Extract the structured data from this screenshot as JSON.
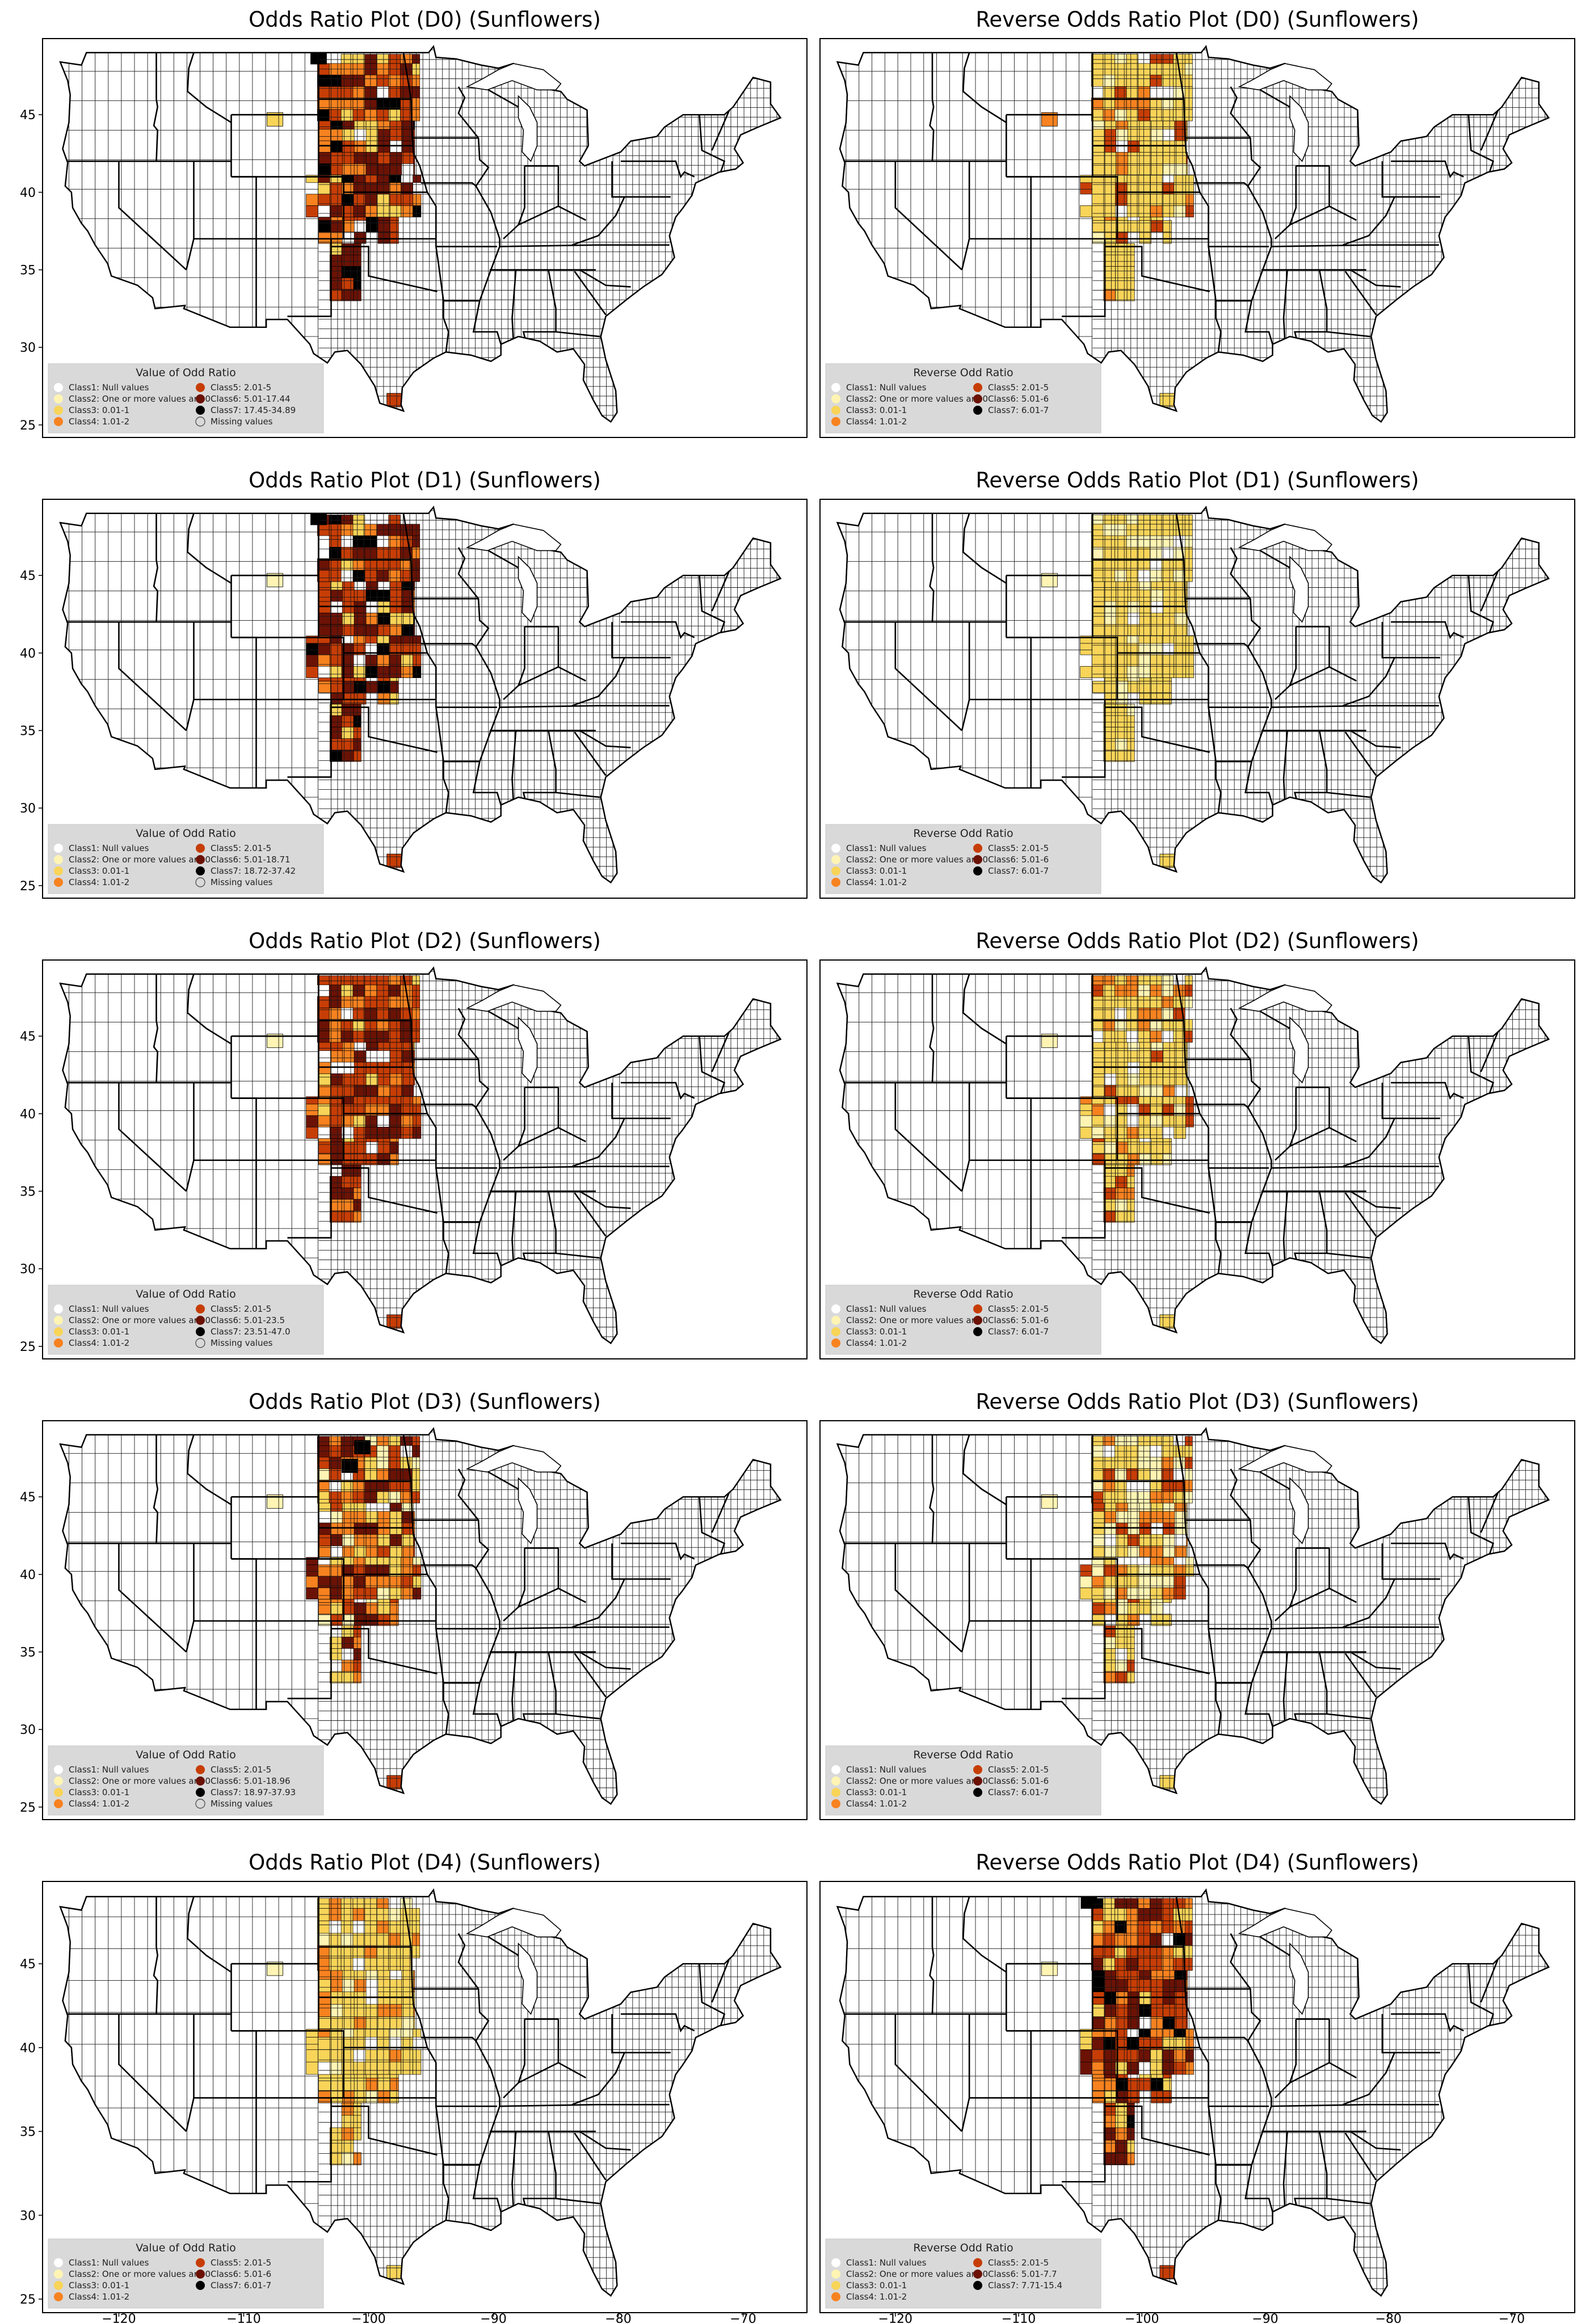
{
  "colors": {
    "class1": "#ffffff",
    "class2": "#fff4b3",
    "class3": "#f8d458",
    "class4": "#f7821f",
    "class5": "#c73d06",
    "class6": "#6b1205",
    "class7": "#000000",
    "missing": "#d9d9d9",
    "legend_background": "#d9d9d9"
  },
  "axes": {
    "lon_range": [
      -125.5,
      -65.5
    ],
    "lat_range": [
      24.5,
      49.6
    ],
    "lon_ticks": [
      -120,
      -110,
      -100,
      -90,
      -80,
      -70
    ],
    "lat_ticks": [
      25,
      30,
      35,
      40,
      45
    ],
    "lon_tick_labels": [
      "−120",
      "−110",
      "−100",
      "−90",
      "−80",
      "−70"
    ],
    "lat_tick_labels": [
      "25",
      "30",
      "35",
      "40",
      "45"
    ]
  },
  "panels": [
    {
      "title": "Odds Ratio Plot (D0) (Sunflowers)",
      "legend": {
        "title": "Value of Odd Ratio",
        "entries": [
          {
            "label": "Class1: Null values",
            "color": "class1"
          },
          {
            "label": "Class2: One or more values are 0",
            "color": "class2"
          },
          {
            "label": "Class3: 0.01-1",
            "color": "class3"
          },
          {
            "label": "Class4: 1.01-2",
            "color": "class4"
          },
          {
            "label": "Class5: 2.01-5",
            "color": "class5"
          },
          {
            "label": "Class6: 5.01-17.44",
            "color": "class6"
          },
          {
            "label": "Class7: 17.45-34.89",
            "color": "class7"
          },
          {
            "label": "Missing values",
            "color": "missing"
          }
        ]
      },
      "palette": [
        "class5",
        "class6",
        "class5",
        "class6",
        "class4",
        "class7",
        "class5",
        "class3",
        "class6",
        "class4"
      ],
      "accents": [
        {
          "lon": -104.0,
          "lat": 48.7,
          "color": "class7"
        },
        {
          "lon": -107.5,
          "lat": 44.7,
          "color": "class3"
        },
        {
          "lon": -97.9,
          "lat": 26.6,
          "color": "class5"
        }
      ]
    },
    {
      "title": "Reverse Odds Ratio Plot (D0) (Sunflowers)",
      "legend": {
        "title": "Reverse Odd Ratio",
        "entries": [
          {
            "label": "Class1: Null values",
            "color": "class1"
          },
          {
            "label": "Class2: One or more values are 0",
            "color": "class2"
          },
          {
            "label": "Class3: 0.01-1",
            "color": "class3"
          },
          {
            "label": "Class4: 1.01-2",
            "color": "class4"
          },
          {
            "label": "Class5: 2.01-5",
            "color": "class5"
          },
          {
            "label": "Class6: 5.01-6",
            "color": "class6"
          },
          {
            "label": "Class7: 6.01-7",
            "color": "class7"
          }
        ]
      },
      "palette": [
        "class3",
        "class3",
        "class3",
        "class2",
        "class3",
        "class3",
        "class4",
        "class3",
        "class3",
        "class5"
      ],
      "accents": [
        {
          "lon": -107.5,
          "lat": 44.7,
          "color": "class4"
        },
        {
          "lon": -97.9,
          "lat": 26.6,
          "color": "class3"
        }
      ]
    },
    {
      "title": "Odds Ratio Plot (D1) (Sunflowers)",
      "legend": {
        "title": "Value of Odd Ratio",
        "entries": [
          {
            "label": "Class1: Null values",
            "color": "class1"
          },
          {
            "label": "Class2: One or more values are 0",
            "color": "class2"
          },
          {
            "label": "Class3: 0.01-1",
            "color": "class3"
          },
          {
            "label": "Class4: 1.01-2",
            "color": "class4"
          },
          {
            "label": "Class5: 2.01-5",
            "color": "class5"
          },
          {
            "label": "Class6: 5.01-18.71",
            "color": "class6"
          },
          {
            "label": "Class7: 18.72-37.42",
            "color": "class7"
          },
          {
            "label": "Missing values",
            "color": "missing"
          }
        ]
      },
      "palette": [
        "class5",
        "class6",
        "class5",
        "class6",
        "class4",
        "class5",
        "class7",
        "class3",
        "class6",
        "class5"
      ],
      "accents": [
        {
          "lon": -104.0,
          "lat": 48.7,
          "color": "class7"
        },
        {
          "lon": -107.5,
          "lat": 44.7,
          "color": "class2"
        },
        {
          "lon": -97.9,
          "lat": 26.6,
          "color": "class5"
        }
      ]
    },
    {
      "title": "Reverse Odds Ratio Plot (D1) (Sunflowers)",
      "legend": {
        "title": "Reverse Odd Ratio",
        "entries": [
          {
            "label": "Class1: Null values",
            "color": "class1"
          },
          {
            "label": "Class2: One or more values are 0",
            "color": "class2"
          },
          {
            "label": "Class3: 0.01-1",
            "color": "class3"
          },
          {
            "label": "Class4: 1.01-2",
            "color": "class4"
          },
          {
            "label": "Class5: 2.01-5",
            "color": "class5"
          },
          {
            "label": "Class6: 5.01-6",
            "color": "class6"
          },
          {
            "label": "Class7: 6.01-7",
            "color": "class7"
          }
        ]
      },
      "palette": [
        "class3",
        "class3",
        "class3",
        "class2",
        "class3",
        "class3",
        "class3",
        "class3",
        "class2",
        "class3"
      ],
      "accents": [
        {
          "lon": -107.5,
          "lat": 44.7,
          "color": "class2"
        },
        {
          "lon": -97.9,
          "lat": 26.6,
          "color": "class3"
        }
      ]
    },
    {
      "title": "Odds Ratio Plot (D2) (Sunflowers)",
      "legend": {
        "title": "Value of Odd Ratio",
        "entries": [
          {
            "label": "Class1: Null values",
            "color": "class1"
          },
          {
            "label": "Class2: One or more values are 0",
            "color": "class2"
          },
          {
            "label": "Class3: 0.01-1",
            "color": "class3"
          },
          {
            "label": "Class4: 1.01-2",
            "color": "class4"
          },
          {
            "label": "Class5: 2.01-5",
            "color": "class5"
          },
          {
            "label": "Class6: 5.01-23.5",
            "color": "class6"
          },
          {
            "label": "Class7: 23.51-47.0",
            "color": "class7"
          },
          {
            "label": "Missing values",
            "color": "missing"
          }
        ]
      },
      "palette": [
        "class6",
        "class5",
        "class6",
        "class5",
        "class4",
        "class6",
        "class5",
        "class3",
        "class5",
        "class4"
      ],
      "accents": [
        {
          "lon": -107.5,
          "lat": 44.7,
          "color": "class2"
        },
        {
          "lon": -97.9,
          "lat": 26.6,
          "color": "class5"
        }
      ]
    },
    {
      "title": "Reverse Odds Ratio Plot (D2) (Sunflowers)",
      "legend": {
        "title": "Reverse Odd Ratio",
        "entries": [
          {
            "label": "Class1: Null values",
            "color": "class1"
          },
          {
            "label": "Class2: One or more values are 0",
            "color": "class2"
          },
          {
            "label": "Class3: 0.01-1",
            "color": "class3"
          },
          {
            "label": "Class4: 1.01-2",
            "color": "class4"
          },
          {
            "label": "Class5: 2.01-5",
            "color": "class5"
          },
          {
            "label": "Class6: 5.01-6",
            "color": "class6"
          },
          {
            "label": "Class7: 6.01-7",
            "color": "class7"
          }
        ]
      },
      "palette": [
        "class3",
        "class3",
        "class2",
        "class3",
        "class3",
        "class4",
        "class3",
        "class3",
        "class5",
        "class3"
      ],
      "accents": [
        {
          "lon": -107.5,
          "lat": 44.7,
          "color": "class2"
        },
        {
          "lon": -97.9,
          "lat": 26.6,
          "color": "class3"
        }
      ]
    },
    {
      "title": "Odds Ratio Plot (D3) (Sunflowers)",
      "legend": {
        "title": "Value of Odd Ratio",
        "entries": [
          {
            "label": "Class1: Null values",
            "color": "class1"
          },
          {
            "label": "Class2: One or more values are 0",
            "color": "class2"
          },
          {
            "label": "Class3: 0.01-1",
            "color": "class3"
          },
          {
            "label": "Class4: 1.01-2",
            "color": "class4"
          },
          {
            "label": "Class5: 2.01-5",
            "color": "class5"
          },
          {
            "label": "Class6: 5.01-18.96",
            "color": "class6"
          },
          {
            "label": "Class7: 18.97-37.93",
            "color": "class7"
          },
          {
            "label": "Missing values",
            "color": "missing"
          }
        ]
      },
      "palette": [
        "class5",
        "class4",
        "class6",
        "class3",
        "class5",
        "class2",
        "class6",
        "class4",
        "class5",
        "class3"
      ],
      "accents": [
        {
          "lon": -100.5,
          "lat": 48.2,
          "color": "class7"
        },
        {
          "lon": -101.5,
          "lat": 47.0,
          "color": "class7"
        },
        {
          "lon": -107.5,
          "lat": 44.7,
          "color": "class2"
        },
        {
          "lon": -97.9,
          "lat": 26.6,
          "color": "class5"
        }
      ]
    },
    {
      "title": "Reverse Odds Ratio Plot (D3) (Sunflowers)",
      "legend": {
        "title": "Reverse Odd Ratio",
        "entries": [
          {
            "label": "Class1: Null values",
            "color": "class1"
          },
          {
            "label": "Class2: One or more values are 0",
            "color": "class2"
          },
          {
            "label": "Class3: 0.01-1",
            "color": "class3"
          },
          {
            "label": "Class4: 1.01-2",
            "color": "class4"
          },
          {
            "label": "Class5: 2.01-5",
            "color": "class5"
          },
          {
            "label": "Class6: 5.01-6",
            "color": "class6"
          },
          {
            "label": "Class7: 6.01-7",
            "color": "class7"
          }
        ]
      },
      "palette": [
        "class3",
        "class2",
        "class3",
        "class4",
        "class3",
        "class2",
        "class5",
        "class3",
        "class4",
        "class2"
      ],
      "accents": [
        {
          "lon": -107.5,
          "lat": 44.7,
          "color": "class2"
        },
        {
          "lon": -97.9,
          "lat": 26.6,
          "color": "class3"
        }
      ]
    },
    {
      "title": "Odds Ratio Plot (D4) (Sunflowers)",
      "legend": {
        "title": "Value of Odd Ratio",
        "entries": [
          {
            "label": "Class1: Null values",
            "color": "class1"
          },
          {
            "label": "Class2: One or more values are 0",
            "color": "class2"
          },
          {
            "label": "Class3: 0.01-1",
            "color": "class3"
          },
          {
            "label": "Class4: 1.01-2",
            "color": "class4"
          },
          {
            "label": "Class5: 2.01-5",
            "color": "class5"
          },
          {
            "label": "Class6: 5.01-6",
            "color": "class6"
          },
          {
            "label": "Class7: 6.01-7",
            "color": "class7"
          }
        ]
      },
      "palette": [
        "class3",
        "class3",
        "class3",
        "class2",
        "class3",
        "class4",
        "class3",
        "class3",
        "class4",
        "class3"
      ],
      "accents": [
        {
          "lon": -107.5,
          "lat": 44.7,
          "color": "class2"
        },
        {
          "lon": -97.9,
          "lat": 26.6,
          "color": "class3"
        }
      ]
    },
    {
      "title": "Reverse Odds Ratio Plot (D4) (Sunflowers)",
      "legend": {
        "title": "Reverse Odd Ratio",
        "entries": [
          {
            "label": "Class1: Null values",
            "color": "class1"
          },
          {
            "label": "Class2: One or more values are 0",
            "color": "class2"
          },
          {
            "label": "Class3: 0.01-1",
            "color": "class3"
          },
          {
            "label": "Class4: 1.01-2",
            "color": "class4"
          },
          {
            "label": "Class5: 2.01-5",
            "color": "class5"
          },
          {
            "label": "Class6: 5.01-7.7",
            "color": "class6"
          },
          {
            "label": "Class7: 7.71-15.4",
            "color": "class7"
          }
        ]
      },
      "palette": [
        "class5",
        "class6",
        "class4",
        "class5",
        "class7",
        "class4",
        "class5",
        "class6",
        "class3",
        "class5"
      ],
      "accents": [
        {
          "lon": -104.3,
          "lat": 48.7,
          "color": "class7"
        },
        {
          "lon": -107.5,
          "lat": 44.7,
          "color": "class2"
        },
        {
          "lon": -97.9,
          "lat": 26.6,
          "color": "class5"
        }
      ]
    }
  ]
}
